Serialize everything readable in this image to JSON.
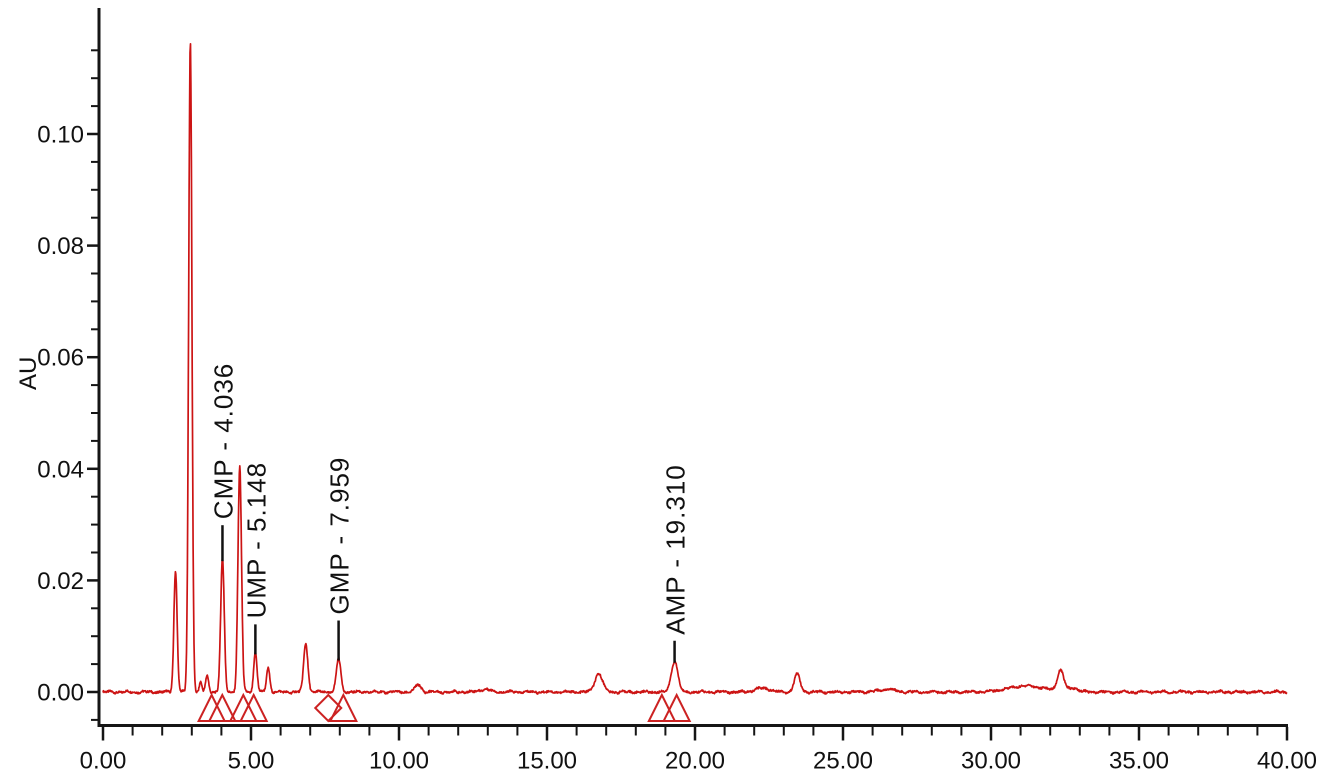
{
  "figure": {
    "background_color": "#ffffff",
    "trace_color": "#cc1414",
    "axis_color": "#151515",
    "marker_color": "#cc2222",
    "label_color": "#111111"
  },
  "axes": {
    "x": {
      "label": "",
      "min": 0,
      "max": 40,
      "major_step": 5,
      "minor_step": 1,
      "ticks": [
        {
          "v": 0,
          "label": "0.00"
        },
        {
          "v": 5,
          "label": "5.00"
        },
        {
          "v": 10,
          "label": "10.00"
        },
        {
          "v": 15,
          "label": "15.00"
        },
        {
          "v": 20,
          "label": "20.00"
        },
        {
          "v": 25,
          "label": "25.00"
        },
        {
          "v": 30,
          "label": "30.00"
        },
        {
          "v": 35,
          "label": "35.00"
        },
        {
          "v": 40,
          "label": "40.00"
        }
      ]
    },
    "y": {
      "label": "AU",
      "min": -0.006,
      "max": 0.1226,
      "major_step": 0.02,
      "minor_step": 0.005,
      "ticks": [
        {
          "v": 0.0,
          "label": "0.00"
        },
        {
          "v": 0.02,
          "label": "0.02"
        },
        {
          "v": 0.04,
          "label": "0.04"
        },
        {
          "v": 0.06,
          "label": "0.06"
        },
        {
          "v": 0.08,
          "label": "0.08"
        },
        {
          "v": 0.1,
          "label": "0.10"
        }
      ]
    }
  },
  "chart_data": {
    "type": "line",
    "title": "",
    "xlabel": "",
    "ylabel": "AU",
    "xlim": [
      0,
      40
    ],
    "ylim": [
      -0.006,
      0.1226
    ],
    "grid": false,
    "legend": "none",
    "series": [
      {
        "name": "chromatogram-trace",
        "color": "#cc1414",
        "baseline": 0.0,
        "peaks": [
          {
            "t": 2.45,
            "h": 0.0217,
            "w": 0.055
          },
          {
            "t": 2.95,
            "h": 0.1165,
            "w": 0.055
          },
          {
            "t": 3.3,
            "h": 0.0018,
            "w": 0.04
          },
          {
            "t": 3.52,
            "h": 0.0029,
            "w": 0.05
          },
          {
            "t": 4.036,
            "h": 0.0238,
            "w": 0.06,
            "label": "CMP - 4.036"
          },
          {
            "t": 4.62,
            "h": 0.0403,
            "w": 0.06
          },
          {
            "t": 5.148,
            "h": 0.0071,
            "w": 0.055,
            "label": "UMP - 5.148"
          },
          {
            "t": 5.58,
            "h": 0.0044,
            "w": 0.055
          },
          {
            "t": 6.85,
            "h": 0.0088,
            "w": 0.07
          },
          {
            "t": 7.959,
            "h": 0.006,
            "w": 0.075,
            "label": "GMP - 7.959"
          },
          {
            "t": 10.65,
            "h": 0.0013,
            "w": 0.1
          },
          {
            "t": 12.9,
            "h": 0.0005,
            "w": 0.18
          },
          {
            "t": 16.75,
            "h": 0.0033,
            "w": 0.13
          },
          {
            "t": 19.31,
            "h": 0.0056,
            "w": 0.11,
            "label": "AMP - 19.310"
          },
          {
            "t": 22.3,
            "h": 0.0007,
            "w": 0.25
          },
          {
            "t": 23.45,
            "h": 0.0032,
            "w": 0.1
          },
          {
            "t": 26.5,
            "h": 0.0005,
            "w": 0.25
          },
          {
            "t": 31.2,
            "h": 0.0011,
            "w": 0.6
          },
          {
            "t": 32.35,
            "h": 0.0038,
            "w": 0.11
          },
          {
            "t": 32.8,
            "h": 0.0007,
            "w": 0.15
          }
        ]
      }
    ],
    "labeled_peaks": [
      {
        "compound": "CMP",
        "retention_time": "4.036",
        "label": "CMP - 4.036"
      },
      {
        "compound": "UMP",
        "retention_time": "5.148",
        "label": "UMP - 5.148"
      },
      {
        "compound": "GMP",
        "retention_time": "7.959",
        "label": "GMP - 7.959"
      },
      {
        "compound": "AMP",
        "retention_time": "19.310",
        "label": "AMP - 19.310"
      }
    ],
    "integration_markers": [
      {
        "shape": "triangle",
        "t": 3.67
      },
      {
        "shape": "triangle",
        "t": 4.03
      },
      {
        "shape": "triangle",
        "t": 4.74
      },
      {
        "shape": "triangle",
        "t": 5.09
      },
      {
        "shape": "diamond",
        "t": 7.61
      },
      {
        "shape": "triangle",
        "t": 8.12
      },
      {
        "shape": "triangle",
        "t": 18.88
      },
      {
        "shape": "triangle",
        "t": 19.38
      }
    ]
  }
}
